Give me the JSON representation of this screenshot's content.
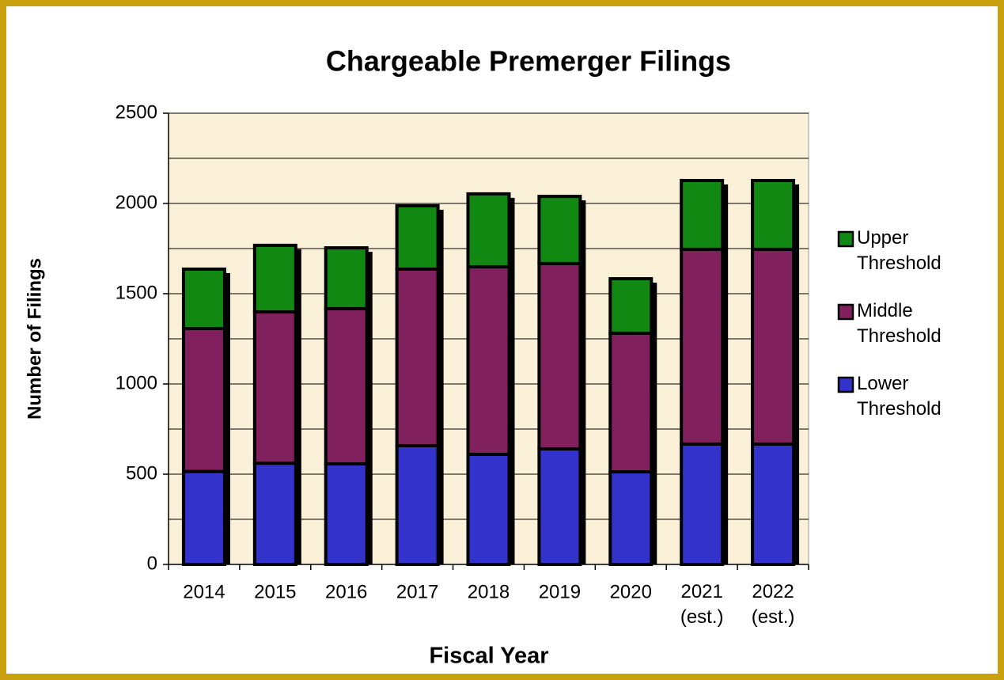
{
  "chart_data": {
    "type": "stacked_bar",
    "title": "Chargeable Premerger Filings",
    "x_label": "Fiscal Year",
    "y_label": "Number of Filings",
    "categories": [
      "2014",
      "2015",
      "2016",
      "2017",
      "2018",
      "2019",
      "2020",
      "2021\n(est.)",
      "2022\n(est.)"
    ],
    "series": [
      {
        "name": "Lower\nThreshold",
        "color": "#3333cc",
        "values": [
          515,
          561,
          557,
          658,
          610,
          640,
          513,
          667,
          667
        ]
      },
      {
        "name": "Middle\nThreshold",
        "color": "#80205c",
        "values": [
          792,
          838,
          860,
          978,
          1039,
          1027,
          768,
          1079,
          1079
        ]
      },
      {
        "name": "Upper\nThreshold",
        "color": "#118811",
        "values": [
          329,
          369,
          337,
          351,
          404,
          372,
          302,
          381,
          381
        ]
      }
    ],
    "ylim": [
      0,
      2500
    ],
    "yticks": [
      0,
      500,
      1000,
      1500,
      2000,
      2500
    ],
    "minor_grid": [
      250,
      750,
      1250,
      1750,
      2250
    ],
    "grid": true,
    "legend": "right",
    "plot_background": "#fbf0d8"
  }
}
